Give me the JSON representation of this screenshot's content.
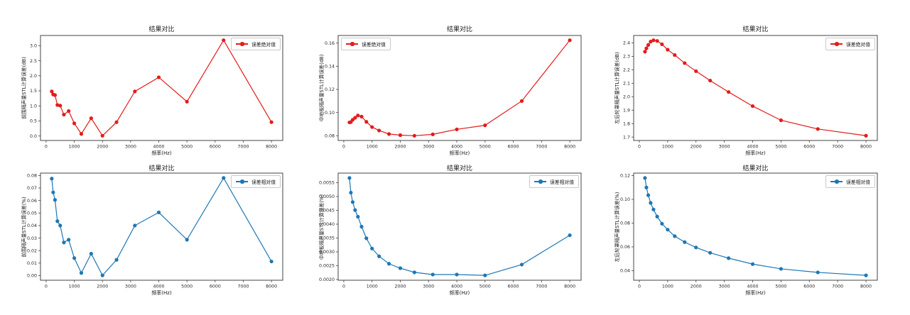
{
  "figure": {
    "background": "#ffffff",
    "frame_color": "#444444",
    "tick_text_color": "#262626"
  },
  "x_axis": {
    "label": "频率(Hz)",
    "range": [
      -200,
      8400
    ],
    "ticks": [
      0,
      1000,
      2000,
      3000,
      4000,
      5000,
      6000,
      7000,
      8000
    ],
    "tick_labels": [
      "0",
      "1000",
      "2000",
      "3000",
      "4000",
      "5000",
      "6000",
      "7000",
      "8000"
    ]
  },
  "frequencies": [
    200,
    250,
    315,
    400,
    500,
    630,
    800,
    1000,
    1250,
    1600,
    2000,
    2500,
    3150,
    4000,
    5000,
    6300,
    8000
  ],
  "chart_data": [
    {
      "type": "line",
      "title": "结果对比",
      "xlabel": "频率(Hz)",
      "ylabel": "前围隔声量STL计算误差(dB)",
      "legend": "误差绝对值",
      "legend_position": "upper right",
      "color": "#e41b1b",
      "x": [
        200,
        250,
        315,
        400,
        500,
        630,
        800,
        1000,
        1250,
        1600,
        2000,
        2500,
        3150,
        4000,
        5000,
        6300,
        8000
      ],
      "values": [
        1.48,
        1.38,
        1.36,
        1.03,
        1.01,
        0.71,
        0.83,
        0.42,
        0.07,
        0.59,
        0.01,
        0.46,
        1.48,
        1.95,
        1.14,
        3.18,
        0.46
      ],
      "ylim": [
        -0.148,
        3.338
      ],
      "yticks": [
        0.0,
        0.5,
        1.0,
        1.5,
        2.0,
        2.5,
        3.0
      ],
      "ytick_labels": [
        "0.0",
        "0.5",
        "1.0",
        "1.5",
        "2.0",
        "2.5",
        "3.0"
      ]
    },
    {
      "type": "line",
      "title": "结果对比",
      "xlabel": "频率(Hz)",
      "ylabel": "中地板隔声量STL计算误差(dB)",
      "legend": "误差绝对值",
      "legend_position": "upper left",
      "color": "#e41b1b",
      "x": [
        200,
        250,
        315,
        400,
        500,
        630,
        800,
        1000,
        1250,
        1600,
        2000,
        2500,
        3150,
        4000,
        5000,
        6300,
        8000
      ],
      "values": [
        0.0915,
        0.0918,
        0.0938,
        0.0955,
        0.0975,
        0.0965,
        0.092,
        0.0875,
        0.0845,
        0.0815,
        0.0805,
        0.08,
        0.0812,
        0.0855,
        0.089,
        0.11,
        0.1625
      ],
      "ylim": [
        0.0759,
        0.1666
      ],
      "yticks": [
        0.08,
        0.1,
        0.12,
        0.14,
        0.16
      ],
      "ytick_labels": [
        "0.08",
        "0.10",
        "0.12",
        "0.14",
        "0.16"
      ]
    },
    {
      "type": "line",
      "title": "结果对比",
      "xlabel": "频率(Hz)",
      "ylabel": "左后轮罩隔声量STL计算误差(dB)",
      "legend": "误差绝对值",
      "legend_position": "upper right",
      "color": "#e41b1b",
      "x": [
        200,
        250,
        315,
        400,
        500,
        630,
        800,
        1000,
        1250,
        1600,
        2000,
        2500,
        3150,
        4000,
        5000,
        6300,
        8000
      ],
      "values": [
        2.335,
        2.36,
        2.385,
        2.41,
        2.42,
        2.415,
        2.39,
        2.35,
        2.31,
        2.25,
        2.19,
        2.12,
        2.035,
        1.93,
        1.825,
        1.76,
        1.71
      ],
      "ylim": [
        1.6745,
        2.4555
      ],
      "yticks": [
        1.7,
        1.8,
        1.9,
        2.0,
        2.1,
        2.2,
        2.3,
        2.4
      ],
      "ytick_labels": [
        "1.7",
        "1.8",
        "1.9",
        "2.0",
        "2.1",
        "2.2",
        "2.3",
        "2.4"
      ]
    },
    {
      "type": "line",
      "title": "结果对比",
      "xlabel": "频率(Hz)",
      "ylabel": "前围隔声量STL计算误差(%)",
      "legend": "误差相对值",
      "legend_position": "upper right",
      "color": "#1f77b4",
      "x": [
        200,
        250,
        315,
        400,
        500,
        630,
        800,
        1000,
        1250,
        1600,
        2000,
        2500,
        3150,
        4000,
        5000,
        6300,
        8000
      ],
      "values": [
        0.0775,
        0.0665,
        0.0605,
        0.0435,
        0.04,
        0.0265,
        0.0287,
        0.014,
        0.0021,
        0.0175,
        0.0002,
        0.0126,
        0.04,
        0.0505,
        0.0287,
        0.078,
        0.0113
      ],
      "ylim": [
        -0.0037,
        0.0819
      ],
      "yticks": [
        0.0,
        0.01,
        0.02,
        0.03,
        0.04,
        0.05,
        0.06,
        0.07,
        0.08
      ],
      "ytick_labels": [
        "0.00",
        "0.01",
        "0.02",
        "0.03",
        "0.04",
        "0.05",
        "0.06",
        "0.07",
        "0.08"
      ]
    },
    {
      "type": "line",
      "title": "结果对比",
      "xlabel": "频率(Hz)",
      "ylabel": "中地板隔声量STL计算误差(%)",
      "legend": "误差相对值",
      "legend_position": "upper right",
      "color": "#1f77b4",
      "x": [
        200,
        250,
        315,
        400,
        500,
        630,
        800,
        1000,
        1250,
        1600,
        2000,
        2500,
        3150,
        4000,
        5000,
        6300,
        8000
      ],
      "values": [
        0.00567,
        0.00514,
        0.0048,
        0.00451,
        0.00427,
        0.00391,
        0.00349,
        0.00312,
        0.00284,
        0.00257,
        0.00241,
        0.00226,
        0.00218,
        0.00218,
        0.00215,
        0.00254,
        0.0036
      ],
      "ylim": [
        0.001974,
        0.005846
      ],
      "yticks": [
        0.002,
        0.0025,
        0.003,
        0.0035,
        0.004,
        0.0045,
        0.005,
        0.0055
      ],
      "ytick_labels": [
        "0.0020",
        "0.0025",
        "0.0030",
        "0.0035",
        "0.0040",
        "0.0045",
        "0.0050",
        "0.0055"
      ]
    },
    {
      "type": "line",
      "title": "结果对比",
      "xlabel": "频率(Hz)",
      "ylabel": "左后轮罩隔声量STL计算误差(%)",
      "legend": "误差相对值",
      "legend_position": "upper right",
      "color": "#1f77b4",
      "x": [
        200,
        250,
        315,
        400,
        500,
        630,
        800,
        1000,
        1250,
        1600,
        2000,
        2500,
        3150,
        4000,
        5000,
        6300,
        8000
      ],
      "values": [
        0.118,
        0.11,
        0.1035,
        0.097,
        0.0915,
        0.0855,
        0.0795,
        0.0745,
        0.069,
        0.064,
        0.0595,
        0.055,
        0.0505,
        0.0455,
        0.0415,
        0.0385,
        0.036
      ],
      "ylim": [
        0.0319,
        0.1221
      ],
      "yticks": [
        0.04,
        0.06,
        0.08,
        0.1,
        0.12
      ],
      "ytick_labels": [
        "0.04",
        "0.06",
        "0.08",
        "0.10",
        "0.12"
      ]
    }
  ]
}
